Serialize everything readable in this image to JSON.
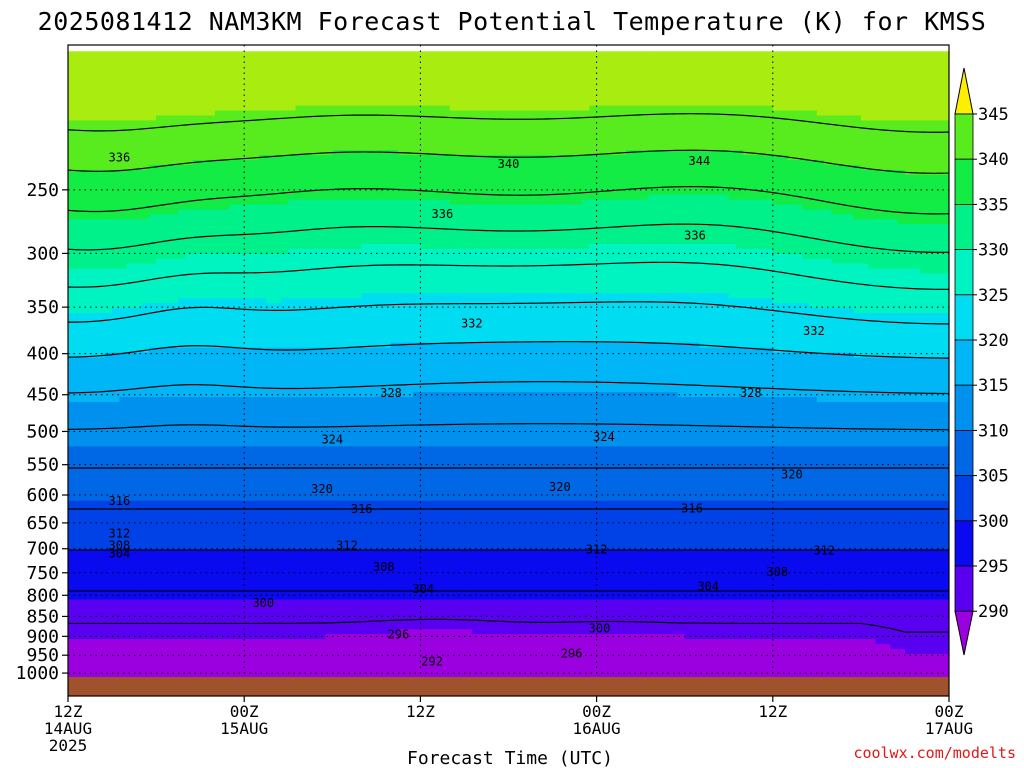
{
  "chart_data": {
    "type": "heatmap",
    "title": "2025081412 NAM3KM Forecast Potential Temperature (K) for KMSS",
    "xlabel": "Forecast Time (UTC)",
    "ylabel": "",
    "credit": "coolwx.com/modelts",
    "x_ticks": [
      {
        "hours": 0,
        "line1": "12Z",
        "line2": "14AUG",
        "line3": "2025"
      },
      {
        "hours": 12,
        "line1": "00Z",
        "line2": "15AUG",
        "line3": ""
      },
      {
        "hours": 24,
        "line1": "12Z",
        "line2": "",
        "line3": ""
      },
      {
        "hours": 36,
        "line1": "00Z",
        "line2": "16AUG",
        "line3": ""
      },
      {
        "hours": 48,
        "line1": "12Z",
        "line2": "",
        "line3": ""
      },
      {
        "hours": 60,
        "line1": "00Z",
        "line2": "17AUG",
        "line3": ""
      }
    ],
    "x_range_hours": [
      0,
      60
    ],
    "y_scale": "log",
    "y_inverted": true,
    "y_range_hpa": [
      1000,
      200
    ],
    "y_ticks": [
      250,
      300,
      350,
      400,
      450,
      500,
      550,
      600,
      650,
      700,
      750,
      800,
      850,
      900,
      950,
      1000
    ],
    "ground_color": "#a0522d",
    "grid": true,
    "colorbar": {
      "ticks": [
        345,
        340,
        335,
        330,
        325,
        320,
        315,
        310,
        305,
        300,
        295,
        290
      ],
      "levels": [
        290,
        295,
        300,
        305,
        310,
        315,
        320,
        325,
        330,
        335,
        340,
        345
      ],
      "colors": [
        "#9b00e0",
        "#5a00f0",
        "#0a0af0",
        "#0042e6",
        "#0068e4",
        "#0090ee",
        "#00b6f6",
        "#00dcf2",
        "#00f4c2",
        "#00f08a",
        "#12ec44",
        "#58ec1e",
        "#a8ec10",
        "#fcf000"
      ]
    },
    "contour_levels": [
      292,
      296,
      300,
      304,
      308,
      312,
      316,
      320,
      324,
      328,
      332,
      336,
      340,
      344
    ],
    "contour_labels": [
      {
        "value": 336,
        "hours": 3.5,
        "hpa": 228
      },
      {
        "value": 340,
        "hours": 30,
        "hpa": 232
      },
      {
        "value": 344,
        "hours": 43,
        "hpa": 230
      },
      {
        "value": 336,
        "hours": 25.5,
        "hpa": 268
      },
      {
        "value": 336,
        "hours": 42.7,
        "hpa": 285
      },
      {
        "value": 332,
        "hours": 27.5,
        "hpa": 367
      },
      {
        "value": 332,
        "hours": 50.8,
        "hpa": 375
      },
      {
        "value": 328,
        "hours": 22,
        "hpa": 448
      },
      {
        "value": 328,
        "hours": 46.5,
        "hpa": 448
      },
      {
        "value": 324,
        "hours": 18,
        "hpa": 512
      },
      {
        "value": 324,
        "hours": 36.5,
        "hpa": 508
      },
      {
        "value": 320,
        "hours": 17.3,
        "hpa": 590
      },
      {
        "value": 320,
        "hours": 33.5,
        "hpa": 586
      },
      {
        "value": 320,
        "hours": 49.3,
        "hpa": 566
      },
      {
        "value": 316,
        "hours": 3.5,
        "hpa": 610
      },
      {
        "value": 316,
        "hours": 20,
        "hpa": 625
      },
      {
        "value": 316,
        "hours": 42.5,
        "hpa": 624
      },
      {
        "value": 312,
        "hours": 3.5,
        "hpa": 670
      },
      {
        "value": 312,
        "hours": 19,
        "hpa": 694
      },
      {
        "value": 312,
        "hours": 36,
        "hpa": 702
      },
      {
        "value": 312,
        "hours": 51.5,
        "hpa": 704
      },
      {
        "value": 308,
        "hours": 3.5,
        "hpa": 694
      },
      {
        "value": 308,
        "hours": 21.5,
        "hpa": 738
      },
      {
        "value": 308,
        "hours": 48.3,
        "hpa": 748
      },
      {
        "value": 304,
        "hours": 3.5,
        "hpa": 710
      },
      {
        "value": 304,
        "hours": 24.2,
        "hpa": 786
      },
      {
        "value": 304,
        "hours": 43.6,
        "hpa": 780
      },
      {
        "value": 300,
        "hours": 13.3,
        "hpa": 818
      },
      {
        "value": 300,
        "hours": 36.2,
        "hpa": 880
      },
      {
        "value": 296,
        "hours": 22.5,
        "hpa": 895
      },
      {
        "value": 296,
        "hours": 34.3,
        "hpa": 945
      },
      {
        "value": 292,
        "hours": 24.8,
        "hpa": 968
      }
    ]
  }
}
